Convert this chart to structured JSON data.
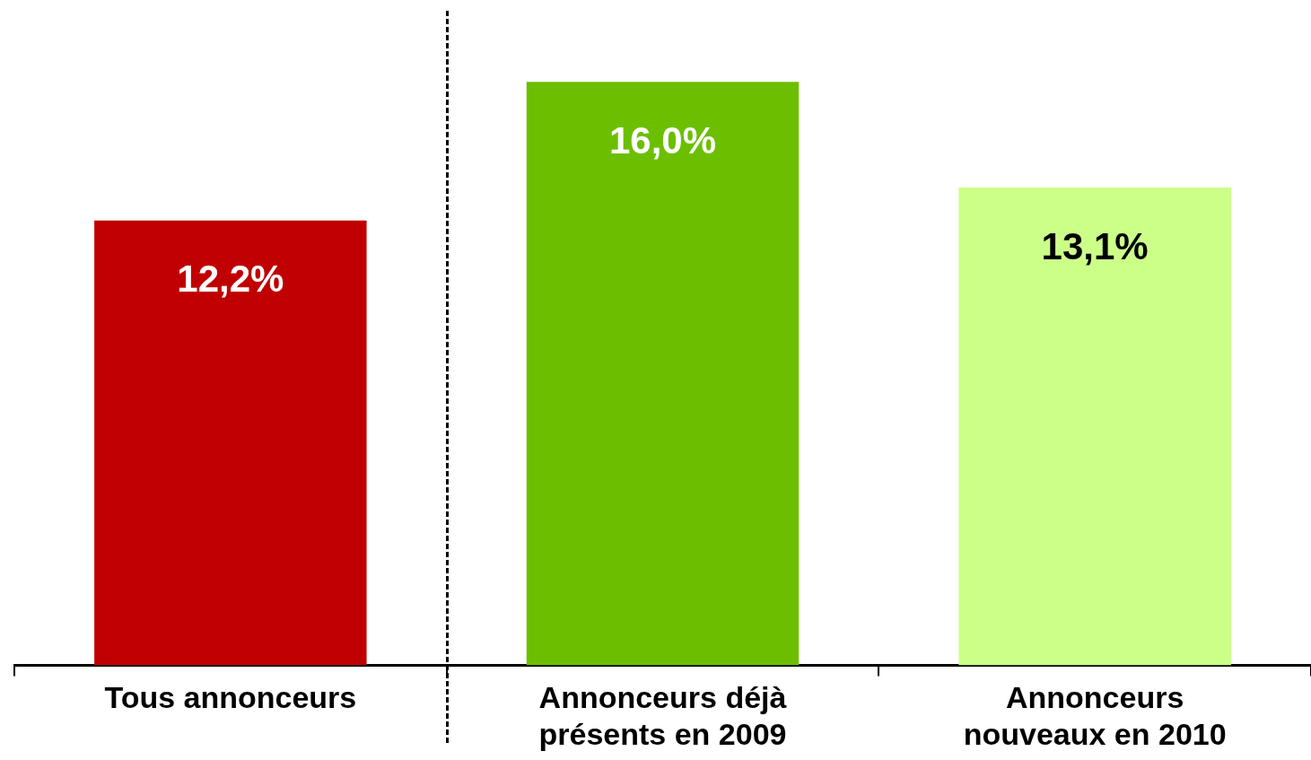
{
  "chart_data": {
    "type": "bar",
    "categories": [
      "Tous annonceurs",
      "Annonceurs déjà présents en 2009",
      "Annonceurs nouveaux en 2010"
    ],
    "values": [
      12.2,
      16.0,
      13.1
    ],
    "colors": [
      "#c00000",
      "#6cbf00",
      "#ccff88"
    ],
    "value_labels": [
      "12,2%",
      "16,0%",
      "13,1%"
    ],
    "grid": false,
    "legend": false,
    "tick_labels": "x"
  }
}
